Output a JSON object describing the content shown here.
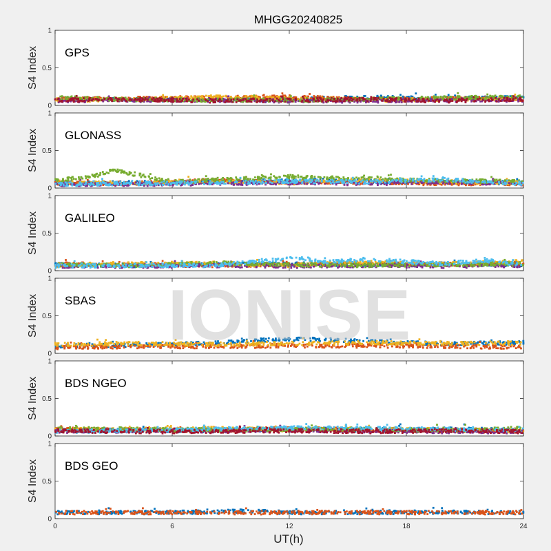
{
  "title": "MHGG20240825",
  "watermark": "IONISE",
  "xlabel": "UT(h)",
  "ylabel": "S4 Index",
  "colors": [
    "#0072BD",
    "#D95319",
    "#EDB120",
    "#7E2F8E",
    "#77AC30",
    "#4DBEEE",
    "#A2142F"
  ],
  "chart_data": [
    {
      "type": "scatter",
      "panel": "GPS",
      "xlim": [
        0,
        24
      ],
      "ylim": [
        0,
        1
      ],
      "xticks": [
        "0",
        "6",
        "12",
        "18",
        "24"
      ],
      "yticks": [
        "0",
        "0.5",
        "1"
      ],
      "series": [
        {
          "color": "#0072BD",
          "x": [
            0,
            4,
            8,
            12,
            16,
            20,
            24
          ],
          "y": [
            0.09,
            0.08,
            0.07,
            0.08,
            0.11,
            0.09,
            0.1
          ]
        },
        {
          "color": "#D95319",
          "x": [
            0,
            4,
            8,
            12,
            16,
            20,
            24
          ],
          "y": [
            0.08,
            0.09,
            0.1,
            0.11,
            0.08,
            0.09,
            0.08
          ]
        },
        {
          "color": "#EDB120",
          "x": [
            0,
            4,
            8,
            12,
            16,
            20,
            24
          ],
          "y": [
            0.07,
            0.08,
            0.11,
            0.09,
            0.07,
            0.08,
            0.09
          ]
        },
        {
          "color": "#7E2F8E",
          "x": [
            0,
            4,
            8,
            12,
            16,
            20,
            24
          ],
          "y": [
            0.06,
            0.07,
            0.07,
            0.06,
            0.06,
            0.07,
            0.07
          ]
        },
        {
          "color": "#77AC30",
          "x": [
            0,
            4,
            8,
            12,
            16,
            20,
            24
          ],
          "y": [
            0.1,
            0.08,
            0.07,
            0.07,
            0.08,
            0.1,
            0.11
          ]
        },
        {
          "color": "#A2142F",
          "x": [
            0,
            4,
            8,
            12,
            16,
            20,
            24
          ],
          "y": [
            0.07,
            0.08,
            0.06,
            0.07,
            0.08,
            0.06,
            0.08
          ]
        }
      ]
    },
    {
      "type": "scatter",
      "panel": "GLONASS",
      "xlim": [
        0,
        24
      ],
      "ylim": [
        0,
        1
      ],
      "xticks": [
        "0",
        "6",
        "12",
        "18",
        "24"
      ],
      "yticks": [
        "0",
        "0.5",
        "1"
      ],
      "series": [
        {
          "color": "#0072BD",
          "x": [
            0,
            4,
            8,
            12,
            16,
            20,
            24
          ],
          "y": [
            0.06,
            0.07,
            0.08,
            0.1,
            0.09,
            0.08,
            0.07
          ]
        },
        {
          "color": "#D95319",
          "x": [
            0,
            4,
            8,
            12,
            16,
            20,
            24
          ],
          "y": [
            0.07,
            0.06,
            0.1,
            0.08,
            0.07,
            0.06,
            0.06
          ]
        },
        {
          "color": "#EDB120",
          "x": [
            0,
            4,
            8,
            12,
            16,
            20,
            24
          ],
          "y": [
            0.08,
            0.06,
            0.09,
            0.07,
            0.1,
            0.08,
            0.07
          ]
        },
        {
          "color": "#7E2F8E",
          "x": [
            0,
            4,
            8,
            12,
            16,
            20,
            24
          ],
          "y": [
            0.05,
            0.05,
            0.06,
            0.07,
            0.06,
            0.08,
            0.06
          ]
        },
        {
          "color": "#77AC30",
          "x": [
            0,
            2,
            3,
            6,
            12,
            16,
            20,
            24
          ],
          "y": [
            0.1,
            0.16,
            0.24,
            0.08,
            0.15,
            0.12,
            0.1,
            0.08
          ]
        },
        {
          "color": "#4DBEEE",
          "x": [
            0,
            4,
            8,
            12,
            16,
            20,
            24
          ],
          "y": [
            0.05,
            0.06,
            0.07,
            0.09,
            0.08,
            0.11,
            0.06
          ]
        }
      ]
    },
    {
      "type": "scatter",
      "panel": "GALILEO",
      "xlim": [
        0,
        24
      ],
      "ylim": [
        0,
        1
      ],
      "xticks": [
        "0",
        "6",
        "12",
        "18",
        "24"
      ],
      "yticks": [
        "0",
        "0.5",
        "1"
      ],
      "series": [
        {
          "color": "#0072BD",
          "x": [
            0,
            4,
            8,
            12,
            16,
            20,
            24
          ],
          "y": [
            0.08,
            0.07,
            0.08,
            0.09,
            0.08,
            0.09,
            0.08
          ]
        },
        {
          "color": "#D95319",
          "x": [
            0,
            4,
            8,
            12,
            16,
            20,
            24
          ],
          "y": [
            0.09,
            0.08,
            0.07,
            0.08,
            0.09,
            0.08,
            0.1
          ]
        },
        {
          "color": "#EDB120",
          "x": [
            0,
            4,
            8,
            12,
            16,
            20,
            24
          ],
          "y": [
            0.07,
            0.09,
            0.1,
            0.07,
            0.11,
            0.09,
            0.12
          ]
        },
        {
          "color": "#7E2F8E",
          "x": [
            0,
            4,
            8,
            12,
            16,
            20,
            24
          ],
          "y": [
            0.06,
            0.06,
            0.07,
            0.06,
            0.07,
            0.06,
            0.07
          ]
        },
        {
          "color": "#77AC30",
          "x": [
            0,
            4,
            8,
            12,
            16,
            20,
            24
          ],
          "y": [
            0.08,
            0.07,
            0.1,
            0.08,
            0.07,
            0.08,
            0.09
          ]
        },
        {
          "color": "#4DBEEE",
          "x": [
            0,
            4,
            8,
            12.5,
            14,
            16,
            20,
            22,
            24
          ],
          "y": [
            0.06,
            0.07,
            0.07,
            0.17,
            0.12,
            0.15,
            0.09,
            0.14,
            0.08
          ]
        }
      ]
    },
    {
      "type": "scatter",
      "panel": "SBAS",
      "xlim": [
        0,
        24
      ],
      "ylim": [
        0,
        1
      ],
      "xticks": [
        "0",
        "6",
        "12",
        "18",
        "24"
      ],
      "yticks": [
        "0",
        "0.5",
        "1"
      ],
      "series": [
        {
          "color": "#0072BD",
          "x": [
            0,
            4,
            8,
            10,
            12,
            14,
            16,
            18,
            20,
            24
          ],
          "y": [
            0.1,
            0.11,
            0.13,
            0.17,
            0.19,
            0.18,
            0.16,
            0.14,
            0.13,
            0.14
          ]
        },
        {
          "color": "#D95319",
          "x": [
            0,
            4,
            8,
            12,
            16,
            20,
            24
          ],
          "y": [
            0.08,
            0.09,
            0.09,
            0.1,
            0.1,
            0.09,
            0.08
          ]
        },
        {
          "color": "#EDB120",
          "x": [
            0,
            4,
            8,
            12,
            16,
            20,
            24
          ],
          "y": [
            0.12,
            0.13,
            0.12,
            0.13,
            0.14,
            0.13,
            0.14
          ]
        }
      ]
    },
    {
      "type": "scatter",
      "panel": "BDS NGEO",
      "xlim": [
        0,
        24
      ],
      "ylim": [
        0,
        1
      ],
      "xticks": [
        "0",
        "6",
        "12",
        "18",
        "24"
      ],
      "yticks": [
        "0",
        "0.5",
        "1"
      ],
      "series": [
        {
          "color": "#0072BD",
          "x": [
            0,
            4,
            8,
            12,
            16,
            20,
            24
          ],
          "y": [
            0.07,
            0.08,
            0.07,
            0.09,
            0.08,
            0.09,
            0.08
          ]
        },
        {
          "color": "#D95319",
          "x": [
            0,
            4,
            8,
            12,
            16,
            20,
            24
          ],
          "y": [
            0.09,
            0.08,
            0.07,
            0.1,
            0.08,
            0.07,
            0.06
          ]
        },
        {
          "color": "#EDB120",
          "x": [
            0,
            4,
            8,
            12,
            16,
            20,
            24
          ],
          "y": [
            0.08,
            0.09,
            0.1,
            0.08,
            0.09,
            0.08,
            0.07
          ]
        },
        {
          "color": "#7E2F8E",
          "x": [
            0,
            4,
            8,
            12,
            16,
            20,
            24
          ],
          "y": [
            0.06,
            0.07,
            0.07,
            0.08,
            0.07,
            0.06,
            0.06
          ]
        },
        {
          "color": "#77AC30",
          "x": [
            0,
            4,
            8,
            12,
            16,
            20,
            24
          ],
          "y": [
            0.1,
            0.09,
            0.08,
            0.09,
            0.09,
            0.08,
            0.1
          ]
        },
        {
          "color": "#4DBEEE",
          "x": [
            0,
            4,
            8,
            12,
            16,
            20,
            24
          ],
          "y": [
            0.06,
            0.07,
            0.09,
            0.11,
            0.1,
            0.09,
            0.08
          ]
        },
        {
          "color": "#A2142F",
          "x": [
            0,
            4,
            8,
            12,
            16,
            20,
            24
          ],
          "y": [
            0.07,
            0.06,
            0.06,
            0.07,
            0.06,
            0.07,
            0.06
          ]
        }
      ]
    },
    {
      "type": "scatter",
      "panel": "BDS GEO",
      "xlim": [
        0,
        24
      ],
      "ylim": [
        0,
        1
      ],
      "xticks": [
        "0",
        "6",
        "12",
        "18",
        "24"
      ],
      "yticks": [
        "0",
        "0.5",
        "1"
      ],
      "series": [
        {
          "color": "#0072BD",
          "x": [
            0,
            4,
            8,
            10,
            12,
            16,
            20,
            24
          ],
          "y": [
            0.08,
            0.08,
            0.09,
            0.1,
            0.08,
            0.08,
            0.09,
            0.08
          ]
        },
        {
          "color": "#D95319",
          "x": [
            0,
            4,
            8,
            12,
            16,
            20,
            24
          ],
          "y": [
            0.08,
            0.08,
            0.08,
            0.08,
            0.08,
            0.08,
            0.08
          ]
        }
      ]
    }
  ]
}
